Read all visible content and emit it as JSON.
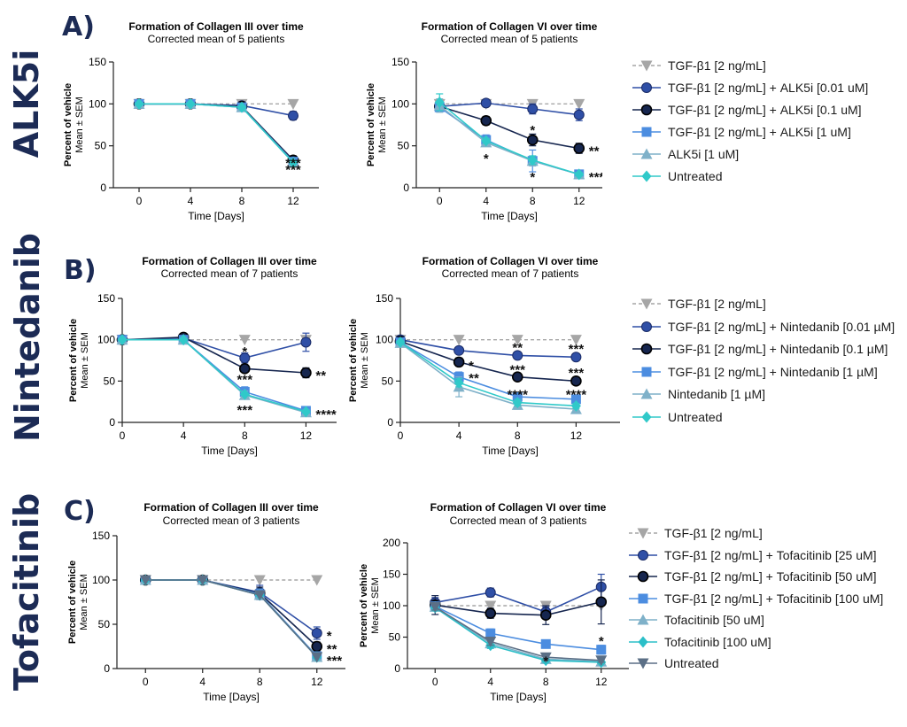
{
  "rows": [
    {
      "section_label": "A)",
      "drug_label": "ALK5i",
      "charts": [
        {
          "title": "Formation of Collagen III over time",
          "subtitle": "Corrected mean of 5 patients",
          "ylabel_main": "Percent of vehicle",
          "ylabel_sub": "Mean ± SEM",
          "xlabel": "Time [Days]"
        },
        {
          "title": "Formation of Collagen VI over time",
          "subtitle": "Corrected mean of 5 patients",
          "ylabel_main": "Percent of vehicle",
          "ylabel_sub": "Mean ± SEM",
          "xlabel": "Time [Days]"
        }
      ],
      "legend": [
        "TGF-β1 [2 ng/mL]",
        "TGF-β1 [2 ng/mL] + ALK5i [0.01 uM]",
        "TGF-β1 [2 ng/mL] + ALK5i [0.1 uM]",
        "TGF-β1 [2 ng/mL] + ALK5i [1 uM]",
        "ALK5i [1 uM]",
        "Untreated"
      ]
    },
    {
      "section_label": "B)",
      "drug_label": "Nintedanib",
      "charts": [
        {
          "title": "Formation of Collagen III over time",
          "subtitle": "Corrected mean of 7 patients",
          "ylabel_main": "Percent of vehicle",
          "ylabel_sub": "Mean ± SEM",
          "xlabel": "Time [Days]"
        },
        {
          "title": "Formation of Collagen VI over time",
          "subtitle": "Corrected mean of 7 patients",
          "ylabel_main": "Percent of vehicle",
          "ylabel_sub": "Mean ± SEM",
          "xlabel": "Time [Days]"
        }
      ],
      "legend": [
        "TGF-β1 [2 ng/mL]",
        "TGF-β1 [2 ng/mL] + Nintedanib [0.01 µM]",
        "TGF-β1 [2 ng/mL] + Nintedanib [0.1 µM]",
        "TGF-β1 [2 ng/mL] + Nintedanib [1 µM]",
        "Nintedanib [1 µM]",
        "Untreated"
      ]
    },
    {
      "section_label": "C)",
      "drug_label": "Tofacitinib",
      "charts": [
        {
          "title": "Formation of Collagen III over time",
          "subtitle": "Corrected mean of 3 patients",
          "ylabel_main": "Percent of vehicle",
          "ylabel_sub": "Mean ± SEM",
          "xlabel": "Time [Days]"
        },
        {
          "title": "Formation of Collagen VI over time",
          "subtitle": "Corrected mean of 3 patients",
          "ylabel_main": "Percent of vehicle",
          "ylabel_sub": "Mean ± SEM",
          "xlabel": "Time [Days]"
        }
      ],
      "legend": [
        "TGF-β1 [2 ng/mL]",
        "TGF-β1 [2 ng/mL] + Tofacitinib [25 uM]",
        "TGF-β1 [2 ng/mL] + Tofacitinib [50 uM]",
        "TGF-β1 [2 ng/mL] + Tofacitinib [100 uM]",
        "Tofacitinib [50 uM]",
        "Tofacitinib [100 uM]",
        "Untreated"
      ]
    }
  ],
  "colors": {
    "tgf": "#a6a6a6",
    "low": "#2f4fa6",
    "mid": "#16264f",
    "high": "#4c8de0",
    "drug": "#7fb1c9",
    "drug2": "#2bbfc8",
    "untreated": "#30c9c9",
    "untreated_tofa": "#5b6f86",
    "side_label": "#1c2b55"
  },
  "chart_data": [
    {
      "type": "line",
      "title": "Formation of Collagen III over time",
      "subtitle": "Corrected mean of 5 patients",
      "xlabel": "Time [Days]",
      "ylabel": "Percent of vehicle Mean ± SEM",
      "x": [
        0,
        4,
        8,
        12
      ],
      "xlim": [
        -2,
        14
      ],
      "ylim": [
        0,
        150
      ],
      "yticks": [
        0,
        50,
        100,
        150
      ],
      "series": [
        {
          "name": "TGF-β1 [2 ng/mL]",
          "values": [
            100,
            100,
            100,
            100
          ],
          "marker": "tri-down",
          "color": "tgf",
          "dashed": true
        },
        {
          "name": "TGF-β1 [2 ng/mL] + ALK5i [0.01 uM]",
          "values": [
            100,
            100,
            98,
            86
          ],
          "err": [
            1,
            1,
            2,
            5
          ],
          "marker": "circle",
          "color": "low"
        },
        {
          "name": "TGF-β1 [2 ng/mL] + ALK5i [0.1 uM]",
          "values": [
            100,
            100,
            97,
            33
          ],
          "err": [
            1,
            1,
            2,
            5
          ],
          "marker": "circle-dark",
          "color": "mid"
        },
        {
          "name": "TGF-β1 [2 ng/mL] + ALK5i [1 uM]",
          "values": [
            100,
            100,
            96,
            31
          ],
          "marker": "square",
          "color": "high"
        },
        {
          "name": "ALK5i [1 uM]",
          "values": [
            100,
            100,
            96,
            30
          ],
          "marker": "tri-up",
          "color": "drug"
        },
        {
          "name": "Untreated",
          "values": [
            100,
            100,
            96,
            30
          ],
          "marker": "diamond",
          "color": "untreated"
        }
      ],
      "annotations": [
        {
          "x": 12,
          "y": 33,
          "text": "***"
        },
        {
          "x": 12,
          "y": 25,
          "text": "***"
        }
      ]
    },
    {
      "type": "line",
      "title": "Formation of Collagen VI over time",
      "subtitle": "Corrected mean of 5 patients",
      "xlabel": "Time [Days]",
      "ylabel": "Percent of vehicle Mean ± SEM",
      "x": [
        0,
        4,
        8,
        12
      ],
      "xlim": [
        -2,
        14
      ],
      "ylim": [
        0,
        150
      ],
      "yticks": [
        0,
        50,
        100,
        150
      ],
      "series": [
        {
          "name": "TGF-β1 [2 ng/mL]",
          "values": [
            100,
            100,
            100,
            100
          ],
          "marker": "tri-down",
          "color": "tgf",
          "dashed": true
        },
        {
          "name": "TGF-β1 [2 ng/mL] + ALK5i [0.01 uM]",
          "values": [
            97,
            101,
            94,
            87
          ],
          "err": [
            4,
            3,
            6,
            7
          ],
          "marker": "circle",
          "color": "low"
        },
        {
          "name": "TGF-β1 [2 ng/mL] + ALK5i [0.1 uM]",
          "values": [
            97,
            80,
            57,
            47
          ],
          "err": [
            3,
            5,
            7,
            6
          ],
          "marker": "circle-dark",
          "color": "mid"
        },
        {
          "name": "TGF-β1 [2 ng/mL] + ALK5i [1 uM]",
          "values": [
            96,
            57,
            32,
            16
          ],
          "err": [
            3,
            6,
            13,
            2
          ],
          "marker": "square",
          "color": "high"
        },
        {
          "name": "ALK5i [1 uM]",
          "values": [
            98,
            54,
            32,
            16
          ],
          "err": [
            8,
            4,
            6,
            2
          ],
          "marker": "tri-up",
          "color": "drug"
        },
        {
          "name": "Untreated",
          "values": [
            102,
            56,
            33,
            16
          ],
          "err": [
            10,
            3,
            5,
            2
          ],
          "marker": "diamond",
          "color": "untreated"
        }
      ],
      "annotations": [
        {
          "x": 4,
          "y": 38,
          "text": "*"
        },
        {
          "x": 8,
          "y": 72,
          "text": "*"
        },
        {
          "x": 8,
          "y": 16,
          "text": "*"
        },
        {
          "x": 12,
          "y": 47,
          "text": "**",
          "side": "right"
        },
        {
          "x": 12,
          "y": 16,
          "text": "****",
          "side": "right"
        }
      ]
    },
    {
      "type": "line",
      "title": "Formation of Collagen III over time",
      "subtitle": "Corrected mean of 7 patients",
      "xlabel": "Time [Days]",
      "ylabel": "Percent of vehicle Mean ± SEM",
      "x": [
        0,
        4,
        8,
        12
      ],
      "xlim": [
        0,
        14
      ],
      "ylim": [
        0,
        150
      ],
      "yticks": [
        0,
        50,
        100,
        150
      ],
      "series": [
        {
          "name": "TGF-β1 [2 ng/mL]",
          "values": [
            100,
            100,
            100,
            100
          ],
          "marker": "tri-down",
          "color": "tgf",
          "dashed": true
        },
        {
          "name": "TGF-β1 [2 ng/mL] + Nintedanib [0.01 µM]",
          "values": [
            100,
            102,
            78,
            97
          ],
          "err": [
            2,
            3,
            6,
            11
          ],
          "marker": "circle",
          "color": "low"
        },
        {
          "name": "TGF-β1 [2 ng/mL] + Nintedanib [0.1 µM]",
          "values": [
            100,
            103,
            65,
            60
          ],
          "err": [
            2,
            2,
            3,
            6
          ],
          "marker": "circle-dark",
          "color": "mid"
        },
        {
          "name": "TGF-β1 [2 ng/mL] + Nintedanib [1 µM]",
          "values": [
            100,
            100,
            37,
            14
          ],
          "err": [
            2,
            2,
            6,
            3
          ],
          "marker": "square",
          "color": "high"
        },
        {
          "name": "Nintedanib [1 µM]",
          "values": [
            100,
            100,
            33,
            12
          ],
          "err": [
            2,
            2,
            5,
            3
          ],
          "marker": "tri-up",
          "color": "drug"
        },
        {
          "name": "Untreated",
          "values": [
            100,
            100,
            34,
            13
          ],
          "marker": "diamond",
          "color": "untreated"
        }
      ],
      "annotations": [
        {
          "x": 8,
          "y": 89,
          "text": "*"
        },
        {
          "x": 8,
          "y": 55,
          "text": "***"
        },
        {
          "x": 12,
          "y": 60,
          "text": "**",
          "side": "right"
        },
        {
          "x": 8,
          "y": 18,
          "text": "***"
        },
        {
          "x": 12,
          "y": 13,
          "text": "****",
          "side": "right"
        }
      ]
    },
    {
      "type": "line",
      "title": "Formation of Collagen VI over time",
      "subtitle": "Corrected mean of 7 patients",
      "xlabel": "Time [Days]",
      "ylabel": "Percent of vehicle Mean ± SEM",
      "x": [
        0,
        4,
        8,
        12
      ],
      "xlim": [
        0,
        15
      ],
      "ylim": [
        0,
        150
      ],
      "yticks": [
        0,
        50,
        100,
        150
      ],
      "series": [
        {
          "name": "TGF-β1 [2 ng/mL]",
          "values": [
            100,
            100,
            100,
            100
          ],
          "marker": "tri-down",
          "color": "tgf",
          "dashed": true
        },
        {
          "name": "TGF-β1 [2 ng/mL] + Nintedanib [0.01 µM]",
          "values": [
            100,
            87,
            81,
            79
          ],
          "err": [
            2,
            3,
            3,
            3
          ],
          "marker": "circle",
          "color": "low"
        },
        {
          "name": "TGF-β1 [2 ng/mL] + Nintedanib [0.1 µM]",
          "values": [
            98,
            73,
            55,
            50
          ],
          "err": [
            2,
            5,
            3,
            3
          ],
          "marker": "circle-dark",
          "color": "mid"
        },
        {
          "name": "TGF-β1 [2 ng/mL] + Nintedanib [1 µM]",
          "values": [
            97,
            55,
            31,
            28
          ],
          "err": [
            2,
            6,
            4,
            3
          ],
          "marker": "square",
          "color": "high"
        },
        {
          "name": "Nintedanib [1 µM]",
          "values": [
            96,
            43,
            21,
            16
          ],
          "err": [
            3,
            12,
            5,
            4
          ],
          "marker": "tri-up",
          "color": "drug"
        },
        {
          "name": "Untreated",
          "values": [
            97,
            48,
            24,
            20
          ],
          "err": [
            2,
            5,
            4,
            3
          ],
          "marker": "diamond",
          "color": "untreated"
        }
      ],
      "annotations": [
        {
          "x": 4,
          "y": 72,
          "text": "*",
          "side": "right"
        },
        {
          "x": 4,
          "y": 57,
          "text": "**",
          "side": "right"
        },
        {
          "x": 8,
          "y": 94,
          "text": "**"
        },
        {
          "x": 8,
          "y": 67,
          "text": "***"
        },
        {
          "x": 8,
          "y": 37,
          "text": "****"
        },
        {
          "x": 12,
          "y": 92,
          "text": "***"
        },
        {
          "x": 12,
          "y": 63,
          "text": "***"
        },
        {
          "x": 12,
          "y": 37,
          "text": "****"
        }
      ]
    },
    {
      "type": "line",
      "title": "Formation of Collagen III over time",
      "subtitle": "Corrected mean of 3 patients",
      "xlabel": "Time [Days]",
      "ylabel": "Percent of vehicle Mean ± SEM",
      "x": [
        0,
        4,
        8,
        12
      ],
      "xlim": [
        -2,
        14
      ],
      "ylim": [
        0,
        150
      ],
      "yticks": [
        0,
        50,
        100,
        150
      ],
      "series": [
        {
          "name": "TGF-β1 [2 ng/mL]",
          "values": [
            100,
            100,
            100,
            100
          ],
          "marker": "tri-down",
          "color": "tgf",
          "dashed": true
        },
        {
          "name": "TGF-β1 [2 ng/mL] + Tofacitinib [25 uM]",
          "values": [
            100,
            100,
            86,
            40
          ],
          "err": [
            2,
            2,
            8,
            7
          ],
          "marker": "circle",
          "color": "low"
        },
        {
          "name": "TGF-β1 [2 ng/mL] + Tofacitinib [50 uM]",
          "values": [
            100,
            100,
            85,
            25
          ],
          "err": [
            2,
            2,
            7,
            5
          ],
          "marker": "circle-dark",
          "color": "mid"
        },
        {
          "name": "TGF-β1 [2 ng/mL] + Tofacitinib [100 uM]",
          "values": [
            100,
            100,
            84,
            14
          ],
          "err": [
            2,
            2,
            6,
            3
          ],
          "marker": "square",
          "color": "high"
        },
        {
          "name": "Tofacitinib [50 uM]",
          "values": [
            100,
            100,
            83,
            13
          ],
          "marker": "tri-up",
          "color": "drug"
        },
        {
          "name": "Tofacitinib [100 uM]",
          "values": [
            100,
            100,
            83,
            13
          ],
          "marker": "diamond",
          "color": "drug2"
        },
        {
          "name": "Untreated",
          "values": [
            100,
            100,
            83,
            13
          ],
          "marker": "tri-down",
          "color": "untreated_tofa"
        }
      ],
      "annotations": [
        {
          "x": 12,
          "y": 40,
          "text": "*",
          "side": "right"
        },
        {
          "x": 12,
          "y": 25,
          "text": "**",
          "side": "right"
        },
        {
          "x": 12,
          "y": 12,
          "text": "***",
          "side": "right"
        }
      ]
    },
    {
      "type": "line",
      "title": "Formation of Collagen VI over time",
      "subtitle": "Corrected mean of 3 patients",
      "xlabel": "Time [Days]",
      "ylabel": "Percent of vehicle Mean ± SEM",
      "x": [
        0,
        4,
        8,
        12
      ],
      "xlim": [
        -2,
        14
      ],
      "ylim": [
        0,
        200
      ],
      "yticks": [
        0,
        50,
        100,
        150,
        200
      ],
      "series": [
        {
          "name": "TGF-β1 [2 ng/mL]",
          "values": [
            100,
            100,
            100,
            100
          ],
          "marker": "tri-down",
          "color": "tgf",
          "dashed": true
        },
        {
          "name": "TGF-β1 [2 ng/mL] + Tofacitinib [25 uM]",
          "values": [
            105,
            121,
            90,
            130
          ],
          "err": [
            8,
            7,
            8,
            20
          ],
          "marker": "circle",
          "color": "low"
        },
        {
          "name": "TGF-β1 [2 ng/mL] + Tofacitinib [50 uM]",
          "values": [
            101,
            88,
            85,
            106
          ],
          "err": [
            15,
            8,
            15,
            35
          ],
          "marker": "circle-dark",
          "color": "mid"
        },
        {
          "name": "TGF-β1 [2 ng/mL] + Tofacitinib [100 uM]",
          "values": [
            99,
            56,
            39,
            30
          ],
          "err": [
            7,
            7,
            6,
            7
          ],
          "marker": "square",
          "color": "high"
        },
        {
          "name": "Tofacitinib [50 uM]",
          "values": [
            98,
            40,
            15,
            11
          ],
          "err": [
            5,
            6,
            4,
            3
          ],
          "marker": "tri-up",
          "color": "drug"
        },
        {
          "name": "Tofacitinib [100 uM]",
          "values": [
            97,
            37,
            13,
            10
          ],
          "err": [
            5,
            5,
            3,
            2
          ],
          "marker": "diamond",
          "color": "drug2"
        },
        {
          "name": "Untreated",
          "values": [
            98,
            43,
            18,
            13
          ],
          "err": [
            5,
            6,
            4,
            3
          ],
          "marker": "tri-down",
          "color": "untreated_tofa"
        }
      ],
      "annotations": [
        {
          "x": 8,
          "y": 16,
          "text": "*"
        },
        {
          "x": 12,
          "y": 48,
          "text": "*"
        }
      ]
    }
  ]
}
